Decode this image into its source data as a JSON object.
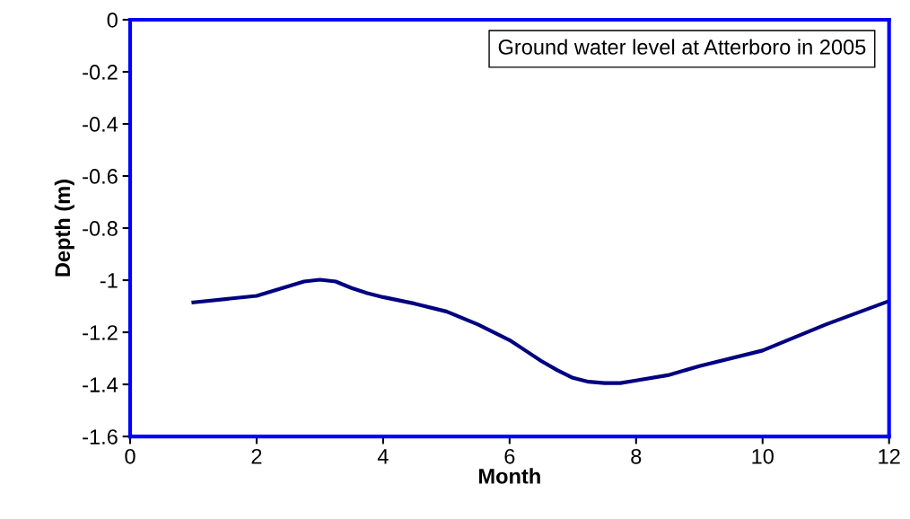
{
  "chart_data": {
    "type": "line",
    "title": "Ground water level at Atterboro in 2005",
    "xlabel": "Month",
    "ylabel": "Depth (m)",
    "x": [
      1,
      2,
      2.75,
      3,
      3.25,
      3.5,
      3.75,
      4,
      4.5,
      5,
      5.5,
      6,
      6.25,
      6.5,
      6.75,
      7,
      7.25,
      7.5,
      7.75,
      8,
      8.5,
      9,
      10,
      11,
      12
    ],
    "series": [
      {
        "color": "#000080",
        "values": [
          -1.085,
          -1.06,
          -1.005,
          -0.998,
          -1.005,
          -1.03,
          -1.05,
          -1.065,
          -1.09,
          -1.12,
          -1.17,
          -1.23,
          -1.27,
          -1.31,
          -1.345,
          -1.375,
          -1.39,
          -1.395,
          -1.395,
          -1.385,
          -1.365,
          -1.33,
          -1.27,
          -1.17,
          -1.08
        ]
      }
    ],
    "xlim": [
      0,
      12
    ],
    "xticks": [
      0,
      2,
      4,
      6,
      8,
      10,
      12
    ],
    "ylim": [
      -1.6,
      0
    ],
    "yticks": [
      -1.6,
      -1.4,
      -1.2,
      -1,
      -0.8,
      -0.6,
      -0.4,
      -0.2,
      0
    ],
    "grid": false,
    "legend": false,
    "marker": "none",
    "line_style": "solid"
  }
}
